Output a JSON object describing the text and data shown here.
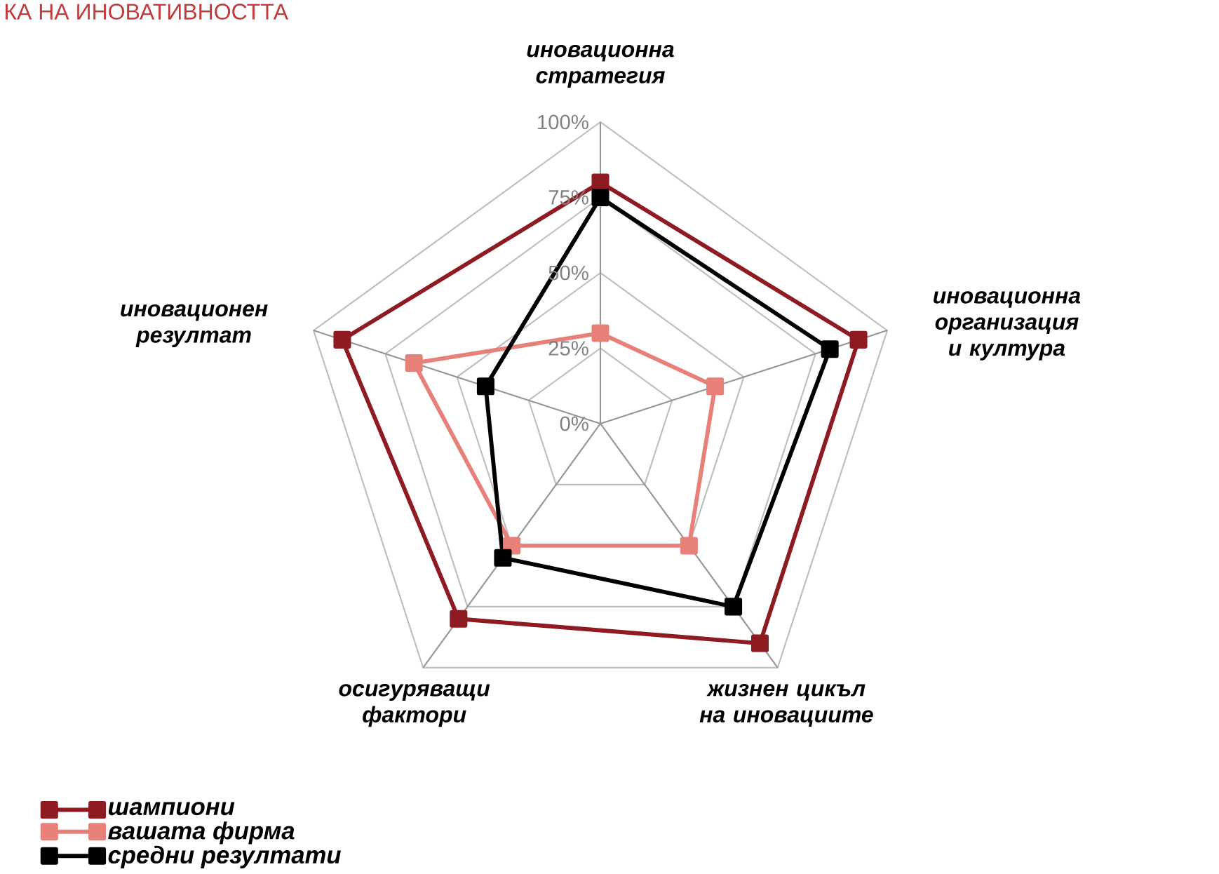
{
  "chart_data": {
    "type": "radar",
    "categories": [
      "иновационна стратегия",
      "иновационна организация и култура",
      "жизнен цикъл на иновациите",
      "осигуряващи фактори",
      "иновационен резултат"
    ],
    "series": [
      {
        "name": "шампиони",
        "color": "#8e1b22",
        "values": [
          80,
          90,
          90,
          80,
          90
        ]
      },
      {
        "name": "вашата фирма",
        "color": "#e8807a",
        "values": [
          30,
          40,
          50,
          50,
          65
        ]
      },
      {
        "name": "средни резултати",
        "color": "#000000",
        "values": [
          75,
          80,
          75,
          55,
          40
        ]
      }
    ],
    "ylim": [
      0,
      100
    ],
    "yticks": [
      {
        "value": 0,
        "label": "0%"
      },
      {
        "value": 25,
        "label": "25%"
      },
      {
        "value": 50,
        "label": "50%"
      },
      {
        "value": 75,
        "label": "75%"
      },
      {
        "value": 100,
        "label": "100%"
      }
    ],
    "grid": true,
    "legend": "bottom left",
    "marker": "square",
    "line_style": "solid",
    "annotations": [
      "КА НА ИНОВАТИВНОСТТА"
    ]
  }
}
